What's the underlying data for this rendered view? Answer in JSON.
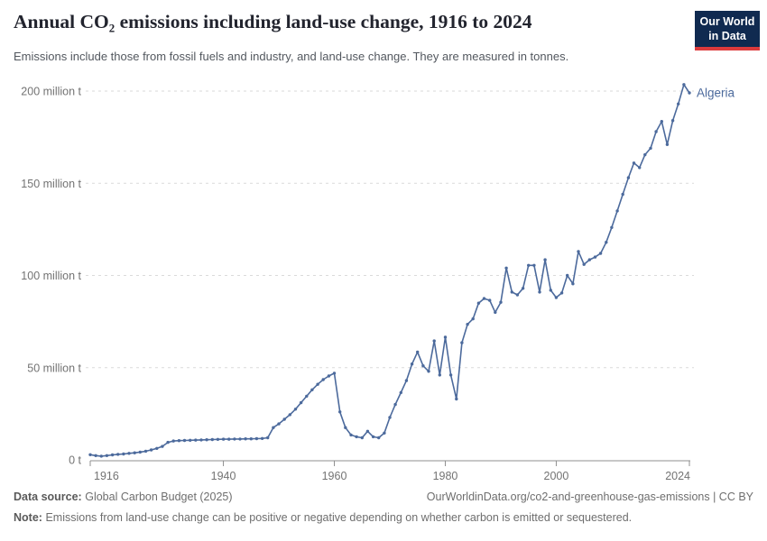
{
  "header": {
    "title": "Annual CO₂ emissions including land-use change, 1916 to 2024",
    "subtitle": "Emissions include those from fossil fuels and industry, and land-use change. They are measured in tonnes.",
    "logo": {
      "line1": "Our World",
      "line2": "in Data",
      "bg_color": "#102A50",
      "bar_color": "#DC3A3C"
    }
  },
  "chart_data": {
    "type": "line",
    "title": "Annual CO₂ emissions including land-use change, 1916 to 2024",
    "xlabel": "",
    "ylabel": "",
    "unit": "million t",
    "xlim": [
      1916,
      2024
    ],
    "ylim": [
      0,
      205
    ],
    "grid": "horizontal-dashed",
    "legend_position": "end-of-line-label",
    "xticks": [
      1916,
      1940,
      1960,
      1980,
      2000,
      2024
    ],
    "yticks": [
      {
        "value": 0,
        "label": "0 t"
      },
      {
        "value": 50,
        "label": "50 million t"
      },
      {
        "value": 100,
        "label": "100 million t"
      },
      {
        "value": 150,
        "label": "150 million t"
      },
      {
        "value": 200,
        "label": "200 million t"
      }
    ],
    "series": [
      {
        "name": "Algeria",
        "color": "#4C6A9C",
        "years": [
          1916,
          1917,
          1918,
          1919,
          1920,
          1921,
          1922,
          1923,
          1924,
          1925,
          1926,
          1927,
          1928,
          1929,
          1930,
          1931,
          1932,
          1933,
          1934,
          1935,
          1936,
          1937,
          1938,
          1939,
          1940,
          1941,
          1942,
          1943,
          1944,
          1945,
          1946,
          1947,
          1948,
          1949,
          1950,
          1951,
          1952,
          1953,
          1954,
          1955,
          1956,
          1957,
          1958,
          1959,
          1960,
          1961,
          1962,
          1963,
          1964,
          1965,
          1966,
          1967,
          1968,
          1969,
          1970,
          1971,
          1972,
          1973,
          1974,
          1975,
          1976,
          1977,
          1978,
          1979,
          1980,
          1981,
          1982,
          1983,
          1984,
          1985,
          1986,
          1987,
          1988,
          1989,
          1990,
          1991,
          1992,
          1993,
          1994,
          1995,
          1996,
          1997,
          1998,
          1999,
          2000,
          2001,
          2002,
          2003,
          2004,
          2005,
          2006,
          2007,
          2008,
          2009,
          2010,
          2011,
          2012,
          2013,
          2014,
          2015,
          2016,
          2017,
          2018,
          2019,
          2020,
          2021,
          2022,
          2023,
          2024
        ],
        "values": [
          2.8,
          2.3,
          2.0,
          2.3,
          2.7,
          3.0,
          3.2,
          3.5,
          3.8,
          4.2,
          4.7,
          5.4,
          6.2,
          7.3,
          9.5,
          10.2,
          10.4,
          10.5,
          10.6,
          10.7,
          10.8,
          10.9,
          11.0,
          11.1,
          11.2,
          11.2,
          11.3,
          11.3,
          11.4,
          11.4,
          11.5,
          11.6,
          12.0,
          17.5,
          19.5,
          22.0,
          24.5,
          27.5,
          31.0,
          34.5,
          38.0,
          41.0,
          43.5,
          45.5,
          47.0,
          26.0,
          17.5,
          13.5,
          12.5,
          12.0,
          15.5,
          12.5,
          12.0,
          14.5,
          23.0,
          30.0,
          36.5,
          43.0,
          52.0,
          58.5,
          51.0,
          48.0,
          64.5,
          46.0,
          66.5,
          46.0,
          33.0,
          63.5,
          73.5,
          76.5,
          85.0,
          87.5,
          86.5,
          80.0,
          85.5,
          104.0,
          91.0,
          89.5,
          93.0,
          105.5,
          105.5,
          91.0,
          108.5,
          92.0,
          88.0,
          90.5,
          100.0,
          95.5,
          113.0,
          106.0,
          108.5,
          110.0,
          112.0,
          118.0,
          126.0,
          135.0,
          144.0,
          153.0,
          161.0,
          158.5,
          165.5,
          169.0,
          178.0,
          183.5,
          171.0,
          184.0,
          193.0,
          203.5,
          199.0
        ]
      }
    ],
    "style": {
      "grid_color": "#dadada",
      "axis_color": "#8f8f8f",
      "tick_label_color": "#737373"
    }
  },
  "footer": {
    "source_label": "Data source:",
    "source_value": "Global Carbon Budget (2025)",
    "link": "OurWorldinData.org/co2-and-greenhouse-gas-emissions | CC BY",
    "note_label": "Note:",
    "note_value": "Emissions from land-use change can be positive or negative depending on whether carbon is emitted or sequestered."
  }
}
